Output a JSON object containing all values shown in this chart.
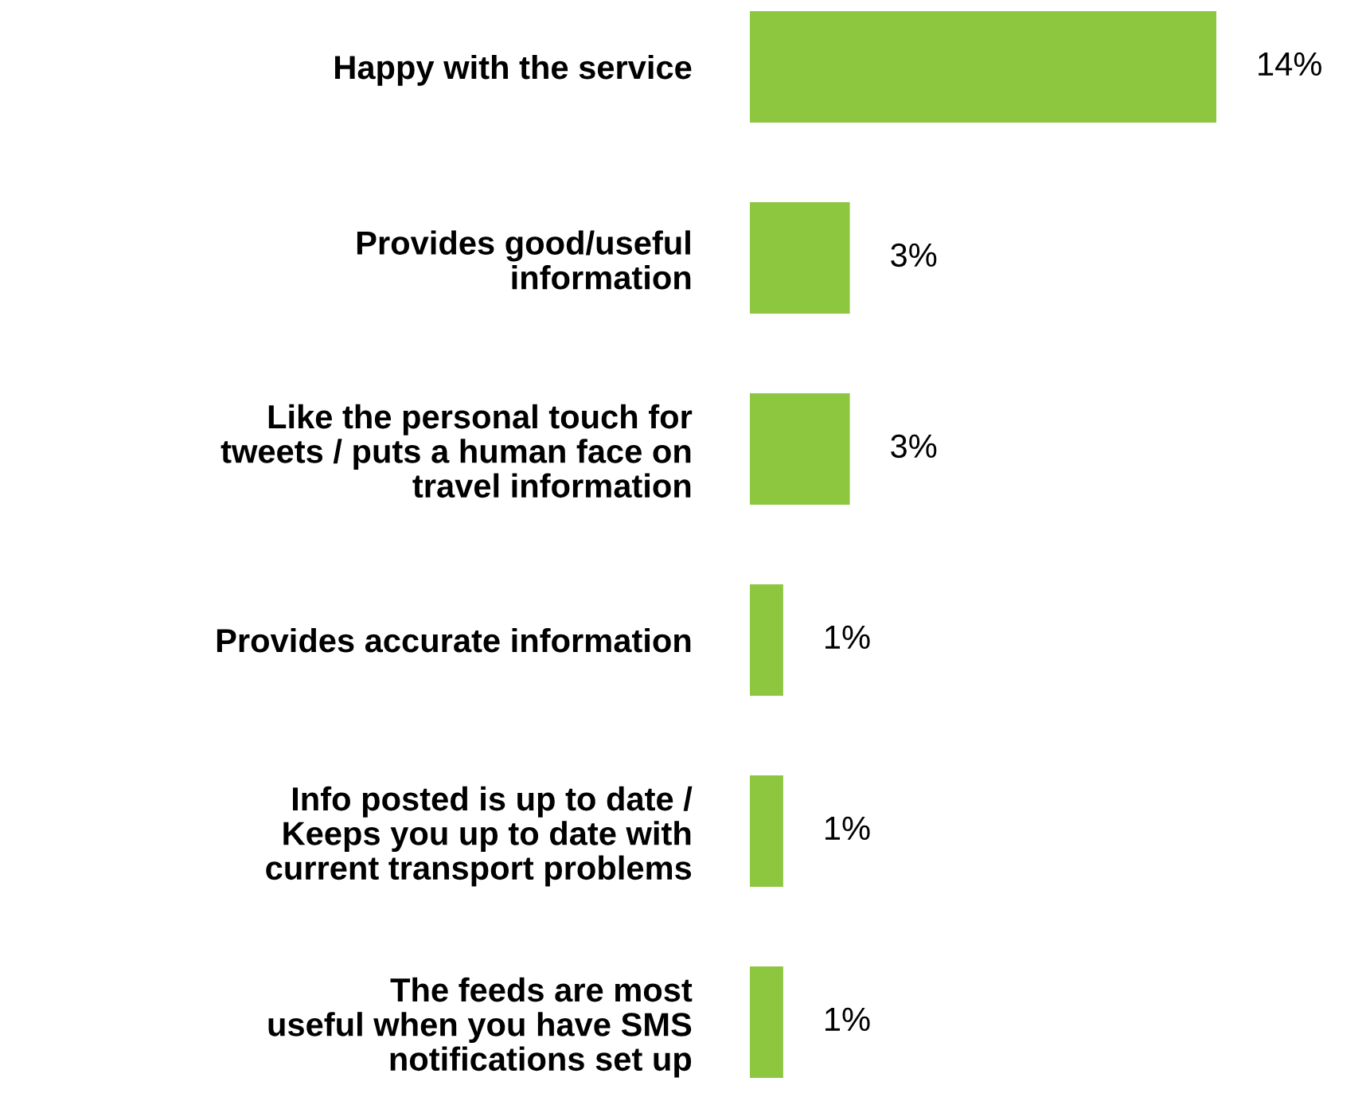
{
  "chart_data": {
    "type": "bar",
    "orientation": "horizontal",
    "categories": [
      "Happy with the service",
      "Provides good/useful\ninformation",
      "Like the personal touch for\ntweets / puts a human face on\ntravel information",
      "Provides accurate information",
      "Info posted is up to date /\nKeeps you up to date with\ncurrent transport problems",
      "The feeds are most\nuseful when you have SMS\nnotifications set up"
    ],
    "values": [
      14,
      3,
      3,
      1,
      1,
      1
    ],
    "value_labels": [
      "14%",
      "3%",
      "3%",
      "1%",
      "1%",
      "1%"
    ],
    "color": "#8dc63f",
    "tick_labels": "y",
    "grid": false,
    "legend": false
  }
}
